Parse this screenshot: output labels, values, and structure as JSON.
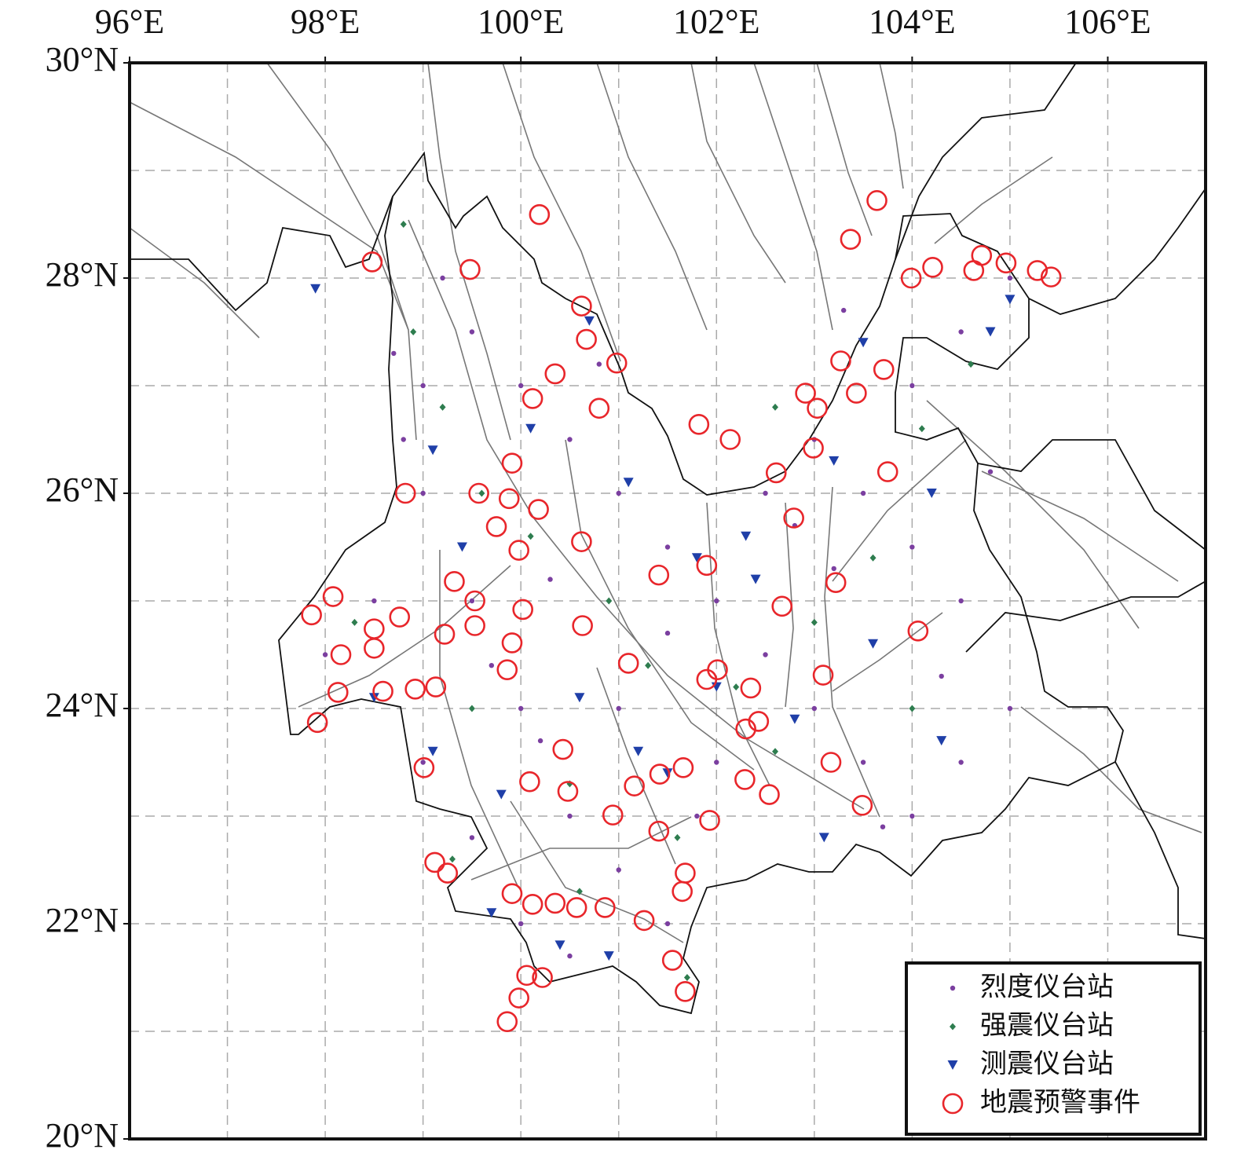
{
  "chart_data": {
    "type": "map",
    "xlim": [
      96,
      107
    ],
    "ylim": [
      20,
      30
    ],
    "xticks": [
      {
        "value": 96,
        "label": "96°E"
      },
      {
        "value": 98,
        "label": "98°E"
      },
      {
        "value": 100,
        "label": "100°E"
      },
      {
        "value": 102,
        "label": "102°E"
      },
      {
        "value": 104,
        "label": "104°E"
      },
      {
        "value": 106,
        "label": "106°E"
      }
    ],
    "yticks": [
      {
        "value": 20,
        "label": "20°N"
      },
      {
        "value": 22,
        "label": "22°N"
      },
      {
        "value": 24,
        "label": "24°N"
      },
      {
        "value": 26,
        "label": "26°N"
      },
      {
        "value": 28,
        "label": "28°N"
      },
      {
        "value": 30,
        "label": "30°N"
      }
    ],
    "grid": true,
    "legend": "lower right",
    "series": [
      {
        "name": "烈度仪台站",
        "color": "#7b3fa0",
        "marker": "dot",
        "points": [
          [
            99,
            27
          ],
          [
            99.5,
            27.5
          ],
          [
            100,
            27
          ],
          [
            100.5,
            26.5
          ],
          [
            101,
            26
          ],
          [
            101.5,
            25.5
          ],
          [
            102,
            25
          ],
          [
            102.5,
            24.5
          ],
          [
            103,
            24
          ],
          [
            103.5,
            23.5
          ],
          [
            104,
            23
          ],
          [
            104.5,
            23.5
          ],
          [
            105,
            24
          ],
          [
            104.5,
            25
          ],
          [
            104,
            25.5
          ],
          [
            103.5,
            26
          ],
          [
            103,
            26.5
          ],
          [
            104,
            27
          ],
          [
            104.5,
            27.5
          ],
          [
            105,
            28
          ],
          [
            99,
            26
          ],
          [
            99.5,
            25
          ],
          [
            100,
            24
          ],
          [
            100.5,
            23
          ],
          [
            101,
            22.5
          ],
          [
            100,
            22
          ],
          [
            100.5,
            21.7
          ],
          [
            101.5,
            22
          ],
          [
            98.5,
            25
          ],
          [
            98,
            24.5
          ],
          [
            99,
            23.5
          ],
          [
            99.5,
            22.8
          ],
          [
            101,
            24
          ],
          [
            102,
            23.5
          ],
          [
            102.5,
            26
          ],
          [
            101.5,
            24.7
          ],
          [
            100.3,
            25.2
          ],
          [
            103.2,
            25.3
          ],
          [
            104.3,
            24.3
          ],
          [
            100.8,
            27.2
          ],
          [
            99.2,
            28
          ],
          [
            98.7,
            27.3
          ],
          [
            102.8,
            25.7
          ],
          [
            101.8,
            23
          ],
          [
            103.7,
            22.9
          ],
          [
            100.2,
            23.7
          ],
          [
            99.7,
            24.4
          ],
          [
            98.8,
            26.5
          ],
          [
            103.3,
            27.7
          ],
          [
            104.8,
            26.2
          ]
        ]
      },
      {
        "name": "强震仪台站",
        "color": "#2e7d4f",
        "marker": "diamond",
        "points": [
          [
            98.8,
            28.5
          ],
          [
            98.9,
            27.5
          ],
          [
            99.2,
            26.8
          ],
          [
            99.6,
            26
          ],
          [
            100.1,
            25.6
          ],
          [
            100.9,
            25
          ],
          [
            101.3,
            24.4
          ],
          [
            102.2,
            24.2
          ],
          [
            103,
            24.8
          ],
          [
            103.6,
            25.4
          ],
          [
            104.1,
            26.6
          ],
          [
            104.6,
            27.2
          ],
          [
            99.5,
            24
          ],
          [
            100.5,
            23.3
          ],
          [
            101.6,
            22.8
          ],
          [
            102.6,
            23.6
          ],
          [
            104,
            24
          ],
          [
            99.3,
            22.6
          ],
          [
            100.6,
            22.3
          ],
          [
            101.7,
            21.5
          ],
          [
            98.3,
            24.8
          ],
          [
            102.6,
            26.8
          ]
        ]
      },
      {
        "name": "测震仪台站",
        "color": "#1f3fa8",
        "marker": "triangle",
        "points": [
          [
            97.9,
            27.9
          ],
          [
            99.1,
            26.4
          ],
          [
            99.4,
            25.5
          ],
          [
            100.1,
            26.6
          ],
          [
            100.7,
            27.6
          ],
          [
            101.1,
            26.1
          ],
          [
            101.8,
            25.4
          ],
          [
            102.3,
            25.6
          ],
          [
            103.2,
            26.3
          ],
          [
            104.2,
            26
          ],
          [
            104.8,
            27.5
          ],
          [
            105,
            27.8
          ],
          [
            98.5,
            24.1
          ],
          [
            99.1,
            23.6
          ],
          [
            99.8,
            23.2
          ],
          [
            100.6,
            24.1
          ],
          [
            101.2,
            23.6
          ],
          [
            102,
            24.2
          ],
          [
            102.8,
            23.9
          ],
          [
            103.6,
            24.6
          ],
          [
            104.3,
            23.7
          ],
          [
            103.1,
            22.8
          ],
          [
            100.4,
            21.8
          ],
          [
            100.9,
            21.7
          ],
          [
            99.7,
            22.1
          ],
          [
            102.4,
            25.2
          ],
          [
            103.5,
            27.4
          ],
          [
            101.5,
            23.4
          ]
        ]
      },
      {
        "name": "地震预警事件",
        "color": "#e8262b",
        "marker": "ring",
        "x": [
          100.19,
          98.48,
          99.48,
          100.62,
          100.67,
          100.98,
          100.35,
          100.12,
          100.8,
          103.64,
          103.37,
          103.99,
          104.21,
          104.71,
          104.96,
          105.28,
          105.42,
          104.63,
          102.91,
          103.03,
          103.27,
          103.71,
          103.43,
          102.99,
          101.82,
          102.14,
          102.61,
          103.75,
          98.82,
          99.57,
          99.91,
          99.88,
          100.18,
          99.75,
          99.98,
          100.62,
          101.41,
          101.9,
          102.79,
          103.22,
          102.67,
          104.06,
          99.32,
          99.53,
          99.53,
          99.22,
          98.76,
          98.5,
          98.5,
          97.86,
          98.08,
          98.16,
          98.13,
          98.59,
          98.92,
          99.13,
          97.92,
          99.01,
          100.02,
          99.91,
          100.63,
          99.86,
          101.1,
          101.9,
          102.01,
          102.35,
          102.43,
          102.3,
          103.09,
          103.17,
          103.49,
          100.43,
          100.09,
          100.48,
          100.94,
          101.16,
          101.42,
          101.66,
          102.29,
          102.54,
          101.93,
          101.41,
          99.12,
          99.25,
          99.91,
          100.12,
          100.35,
          100.57,
          100.86,
          101.26,
          101.65,
          101.68,
          101.55,
          101.68,
          100.06,
          100.22,
          99.98,
          99.86
        ],
        "y": [
          28.59,
          28.15,
          28.08,
          27.74,
          27.43,
          27.21,
          27.11,
          26.88,
          26.79,
          28.72,
          28.36,
          28.0,
          28.1,
          28.21,
          28.14,
          28.07,
          28.01,
          28.07,
          26.93,
          26.79,
          27.23,
          27.15,
          26.93,
          26.42,
          26.64,
          26.5,
          26.19,
          26.2,
          26.0,
          26.0,
          26.28,
          25.95,
          25.85,
          25.69,
          25.47,
          25.55,
          25.24,
          25.33,
          25.77,
          25.17,
          24.95,
          24.72,
          25.18,
          25.0,
          24.77,
          24.69,
          24.85,
          24.74,
          24.56,
          24.87,
          25.04,
          24.5,
          24.15,
          24.16,
          24.18,
          24.2,
          23.87,
          23.45,
          24.92,
          24.61,
          24.77,
          24.36,
          24.42,
          24.27,
          24.36,
          24.19,
          23.88,
          23.81,
          24.31,
          23.5,
          23.1,
          23.62,
          23.32,
          23.23,
          23.01,
          23.28,
          23.39,
          23.45,
          23.34,
          23.2,
          22.96,
          22.86,
          22.57,
          22.47,
          22.28,
          22.18,
          22.19,
          22.15,
          22.15,
          22.03,
          22.3,
          22.47,
          21.66,
          21.37,
          21.52,
          21.5,
          21.31,
          21.09
        ]
      }
    ]
  }
}
